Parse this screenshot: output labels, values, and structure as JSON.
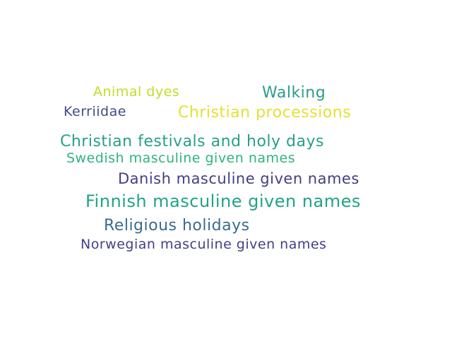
{
  "word_cloud": {
    "words": [
      {
        "text": "Animal dyes",
        "color": "#bddf26"
      },
      {
        "text": "Walking",
        "color": "#2a9d8c"
      },
      {
        "text": "Kerriidae",
        "color": "#3f4c88"
      },
      {
        "text": "Christian processions",
        "color": "#e0e232"
      },
      {
        "text": "Christian festivals and holy days",
        "color": "#26a08a"
      },
      {
        "text": "Swedish masculine given names",
        "color": "#2fb47c"
      },
      {
        "text": "Danish masculine given names",
        "color": "#433e85"
      },
      {
        "text": "Finnish masculine given names",
        "color": "#21a385"
      },
      {
        "text": "Religious holidays",
        "color": "#3a6b8e"
      },
      {
        "text": "Norwegian masculine given names",
        "color": "#423f85"
      }
    ]
  }
}
